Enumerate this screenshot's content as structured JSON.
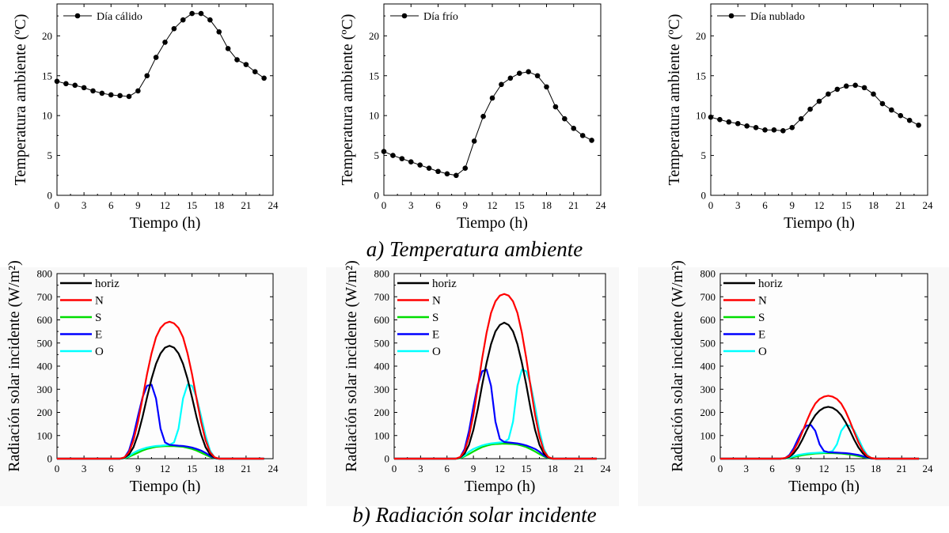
{
  "captions": {
    "a": "a) Temperatura ambiente",
    "b": "b) Radiación solar incidente"
  },
  "colors": {
    "horiz": "#000000",
    "N": "#ff0000",
    "S": "#00dd00",
    "E": "#0000ff",
    "O": "#00ffff",
    "temperature": "#000000"
  },
  "chart_data": [
    {
      "type": "line",
      "legend": "Día cálido",
      "xlabel": "Tiempo (h)",
      "ylabel": "Temperatura ambiente (ºC)",
      "xlim": [
        0,
        24
      ],
      "ylim": [
        0,
        24
      ],
      "xticks": [
        0,
        3,
        6,
        9,
        12,
        15,
        18,
        21,
        24
      ],
      "yticks": [
        0,
        5,
        10,
        15,
        20
      ],
      "x": [
        0,
        1,
        2,
        3,
        4,
        5,
        6,
        7,
        8,
        9,
        10,
        11,
        12,
        13,
        14,
        15,
        16,
        17,
        18,
        19,
        20,
        21,
        22,
        23
      ],
      "series": [
        {
          "name": "Día cálido",
          "values": [
            14.3,
            14.0,
            13.8,
            13.5,
            13.1,
            12.8,
            12.6,
            12.5,
            12.4,
            13.1,
            15.0,
            17.3,
            19.2,
            20.9,
            22.0,
            22.8,
            22.8,
            22.0,
            20.5,
            18.4,
            17.0,
            16.4,
            15.5,
            14.7
          ]
        }
      ]
    },
    {
      "type": "line",
      "legend": "Día frío",
      "xlabel": "Tiempo (h)",
      "ylabel": "Temperatura ambiente (ºC)",
      "xlim": [
        0,
        24
      ],
      "ylim": [
        0,
        24
      ],
      "xticks": [
        0,
        3,
        6,
        9,
        12,
        15,
        18,
        21,
        24
      ],
      "yticks": [
        0,
        5,
        10,
        15,
        20
      ],
      "x": [
        0,
        1,
        2,
        3,
        4,
        5,
        6,
        7,
        8,
        9,
        10,
        11,
        12,
        13,
        14,
        15,
        16,
        17,
        18,
        19,
        20,
        21,
        22,
        23
      ],
      "series": [
        {
          "name": "Día frío",
          "values": [
            5.5,
            5.0,
            4.6,
            4.2,
            3.8,
            3.4,
            3.0,
            2.7,
            2.5,
            3.4,
            6.8,
            9.9,
            12.2,
            13.9,
            14.7,
            15.3,
            15.5,
            15.0,
            13.6,
            11.1,
            9.6,
            8.4,
            7.5,
            6.9
          ]
        }
      ]
    },
    {
      "type": "line",
      "legend": "Día nublado",
      "xlabel": "Tiempo (h)",
      "ylabel": "Temperatura ambiente (ºC)",
      "xlim": [
        0,
        24
      ],
      "ylim": [
        0,
        24
      ],
      "xticks": [
        0,
        3,
        6,
        9,
        12,
        15,
        18,
        21,
        24
      ],
      "yticks": [
        0,
        5,
        10,
        15,
        20
      ],
      "x": [
        0,
        1,
        2,
        3,
        4,
        5,
        6,
        7,
        8,
        9,
        10,
        11,
        12,
        13,
        14,
        15,
        16,
        17,
        18,
        19,
        20,
        21,
        22,
        23
      ],
      "series": [
        {
          "name": "Día nublado",
          "values": [
            9.8,
            9.5,
            9.2,
            9.0,
            8.7,
            8.5,
            8.2,
            8.2,
            8.1,
            8.5,
            9.6,
            10.8,
            11.8,
            12.7,
            13.3,
            13.7,
            13.8,
            13.5,
            12.7,
            11.5,
            10.7,
            10.0,
            9.4,
            8.8
          ]
        }
      ]
    },
    {
      "type": "line",
      "xlabel": "Tiempo (h)",
      "ylabel": "Radiación solar incidente (W/m²)",
      "xlim": [
        0,
        24
      ],
      "ylim": [
        0,
        800
      ],
      "xticks": [
        0,
        3,
        6,
        9,
        12,
        15,
        18,
        21,
        24
      ],
      "yticks": [
        0,
        100,
        200,
        300,
        400,
        500,
        600,
        700,
        800
      ],
      "x": [
        0,
        1,
        2,
        3,
        4,
        5,
        6,
        7,
        7.5,
        8,
        8.5,
        9,
        9.5,
        10,
        10.5,
        11,
        11.5,
        12,
        12.5,
        13,
        13.5,
        14,
        14.5,
        15,
        15.5,
        16,
        16.5,
        17,
        17.5,
        18,
        18.5,
        19,
        20,
        21,
        22,
        23
      ],
      "series": [
        {
          "name": "horiz",
          "values": [
            0,
            0,
            0,
            0,
            0,
            0,
            0,
            0,
            4,
            18,
            50,
            105,
            180,
            265,
            345,
            410,
            455,
            480,
            488,
            480,
            455,
            410,
            345,
            265,
            180,
            105,
            50,
            18,
            4,
            0,
            0,
            0,
            0,
            0,
            0,
            0
          ]
        },
        {
          "name": "N",
          "values": [
            0,
            0,
            0,
            0,
            0,
            0,
            0,
            0,
            6,
            28,
            80,
            160,
            260,
            365,
            455,
            525,
            565,
            585,
            592,
            585,
            565,
            525,
            455,
            365,
            260,
            160,
            80,
            28,
            6,
            0,
            0,
            0,
            0,
            0,
            0,
            0
          ]
        },
        {
          "name": "S",
          "values": [
            0,
            0,
            0,
            0,
            0,
            0,
            0,
            0,
            2,
            8,
            17,
            26,
            35,
            42,
            47,
            51,
            53,
            54,
            54,
            54,
            53,
            51,
            47,
            42,
            35,
            26,
            17,
            8,
            2,
            0,
            0,
            0,
            0,
            0,
            0,
            0
          ]
        },
        {
          "name": "E",
          "values": [
            0,
            0,
            0,
            0,
            0,
            0,
            0,
            0,
            5,
            35,
            100,
            185,
            265,
            315,
            320,
            260,
            130,
            70,
            60,
            58,
            56,
            55,
            52,
            48,
            42,
            35,
            25,
            12,
            3,
            0,
            0,
            0,
            0,
            0,
            0,
            0
          ]
        },
        {
          "name": "O",
          "values": [
            0,
            0,
            0,
            0,
            0,
            0,
            0,
            0,
            3,
            12,
            25,
            35,
            42,
            48,
            52,
            55,
            56,
            58,
            60,
            70,
            130,
            260,
            320,
            315,
            265,
            185,
            100,
            35,
            5,
            0,
            0,
            0,
            0,
            0,
            0,
            0
          ]
        }
      ]
    },
    {
      "type": "line",
      "xlabel": "Tiempo (h)",
      "ylabel": "Radiación solar incidente (W/m²)",
      "xlim": [
        0,
        24
      ],
      "ylim": [
        0,
        800
      ],
      "xticks": [
        0,
        3,
        6,
        9,
        12,
        15,
        18,
        21,
        24
      ],
      "yticks": [
        0,
        100,
        200,
        300,
        400,
        500,
        600,
        700,
        800
      ],
      "x": [
        0,
        1,
        2,
        3,
        4,
        5,
        6,
        7,
        7.5,
        8,
        8.5,
        9,
        9.5,
        10,
        10.5,
        11,
        11.5,
        12,
        12.5,
        13,
        13.5,
        14,
        14.5,
        15,
        15.5,
        16,
        16.5,
        17,
        17.5,
        18,
        18.5,
        19,
        20,
        21,
        22,
        23
      ],
      "series": [
        {
          "name": "horiz",
          "values": [
            0,
            0,
            0,
            0,
            0,
            0,
            0,
            0,
            5,
            22,
            60,
            125,
            215,
            320,
            415,
            495,
            550,
            578,
            588,
            578,
            550,
            495,
            415,
            320,
            215,
            125,
            60,
            22,
            5,
            0,
            0,
            0,
            0,
            0,
            0,
            0
          ]
        },
        {
          "name": "N",
          "values": [
            0,
            0,
            0,
            0,
            0,
            0,
            0,
            0,
            7,
            33,
            95,
            190,
            310,
            435,
            545,
            630,
            680,
            705,
            712,
            705,
            680,
            630,
            545,
            435,
            310,
            190,
            95,
            33,
            7,
            0,
            0,
            0,
            0,
            0,
            0,
            0
          ]
        },
        {
          "name": "S",
          "values": [
            0,
            0,
            0,
            0,
            0,
            0,
            0,
            0,
            2,
            10,
            20,
            31,
            41,
            50,
            56,
            61,
            63,
            64,
            65,
            64,
            63,
            61,
            56,
            50,
            41,
            31,
            20,
            10,
            2,
            0,
            0,
            0,
            0,
            0,
            0,
            0
          ]
        },
        {
          "name": "E",
          "values": [
            0,
            0,
            0,
            0,
            0,
            0,
            0,
            0,
            6,
            42,
            120,
            225,
            320,
            378,
            385,
            315,
            160,
            85,
            72,
            70,
            68,
            66,
            62,
            57,
            50,
            42,
            30,
            14,
            4,
            0,
            0,
            0,
            0,
            0,
            0,
            0
          ]
        },
        {
          "name": "O",
          "values": [
            0,
            0,
            0,
            0,
            0,
            0,
            0,
            0,
            4,
            14,
            30,
            42,
            50,
            57,
            62,
            66,
            68,
            70,
            72,
            85,
            160,
            315,
            385,
            378,
            320,
            225,
            120,
            42,
            6,
            0,
            0,
            0,
            0,
            0,
            0,
            0
          ]
        }
      ]
    },
    {
      "type": "line",
      "xlabel": "Tiempo (h)",
      "ylabel": "Radiación solar incidente (W/m²)",
      "xlim": [
        0,
        24
      ],
      "ylim": [
        0,
        800
      ],
      "xticks": [
        0,
        3,
        6,
        9,
        12,
        15,
        18,
        21,
        24
      ],
      "yticks": [
        0,
        100,
        200,
        300,
        400,
        500,
        600,
        700,
        800
      ],
      "x": [
        0,
        1,
        2,
        3,
        4,
        5,
        6,
        7,
        7.5,
        8,
        8.5,
        9,
        9.5,
        10,
        10.5,
        11,
        11.5,
        12,
        12.5,
        13,
        13.5,
        14,
        14.5,
        15,
        15.5,
        16,
        16.5,
        17,
        17.5,
        18,
        18.5,
        19,
        20,
        21,
        22,
        23
      ],
      "series": [
        {
          "name": "horiz",
          "values": [
            0,
            0,
            0,
            0,
            0,
            0,
            0,
            0,
            2,
            8,
            23,
            48,
            82,
            122,
            158,
            188,
            208,
            220,
            224,
            220,
            208,
            188,
            158,
            122,
            82,
            48,
            23,
            8,
            2,
            0,
            0,
            0,
            0,
            0,
            0,
            0
          ]
        },
        {
          "name": "N",
          "values": [
            0,
            0,
            0,
            0,
            0,
            0,
            0,
            0,
            3,
            12,
            35,
            70,
            115,
            162,
            205,
            238,
            258,
            268,
            272,
            268,
            258,
            238,
            205,
            162,
            115,
            70,
            35,
            12,
            3,
            0,
            0,
            0,
            0,
            0,
            0,
            0
          ]
        },
        {
          "name": "S",
          "values": [
            0,
            0,
            0,
            0,
            0,
            0,
            0,
            0,
            1,
            3,
            7,
            11,
            15,
            18,
            20,
            22,
            23,
            24,
            24,
            24,
            23,
            22,
            20,
            18,
            15,
            11,
            7,
            3,
            1,
            0,
            0,
            0,
            0,
            0,
            0,
            0
          ]
        },
        {
          "name": "E",
          "values": [
            0,
            0,
            0,
            0,
            0,
            0,
            0,
            0,
            2,
            16,
            45,
            85,
            122,
            143,
            145,
            120,
            62,
            33,
            28,
            27,
            26,
            25,
            24,
            22,
            19,
            16,
            11,
            5,
            1,
            0,
            0,
            0,
            0,
            0,
            0,
            0
          ]
        },
        {
          "name": "O",
          "values": [
            0,
            0,
            0,
            0,
            0,
            0,
            0,
            0,
            1,
            5,
            11,
            16,
            19,
            22,
            24,
            25,
            26,
            27,
            28,
            33,
            62,
            120,
            145,
            143,
            122,
            85,
            45,
            16,
            2,
            0,
            0,
            0,
            0,
            0,
            0,
            0
          ]
        }
      ]
    }
  ]
}
